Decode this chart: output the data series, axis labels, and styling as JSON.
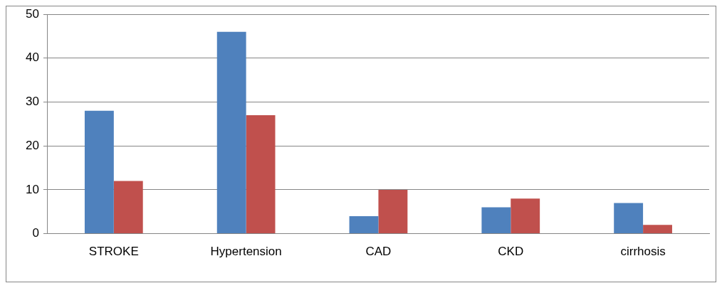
{
  "chart_data": {
    "type": "bar",
    "categories": [
      "STROKE",
      "Hypertension",
      "CAD",
      "CKD",
      "cirrhosis"
    ],
    "series": [
      {
        "color": "#4f81bd",
        "values": [
          28,
          46,
          4,
          6,
          7
        ]
      },
      {
        "color": "#c0504d",
        "values": [
          12,
          27,
          10,
          8,
          2
        ]
      }
    ],
    "ylim": [
      0,
      50
    ],
    "yticks": [
      0,
      10,
      20,
      30,
      40,
      50
    ],
    "grid": "y",
    "legend": false
  }
}
